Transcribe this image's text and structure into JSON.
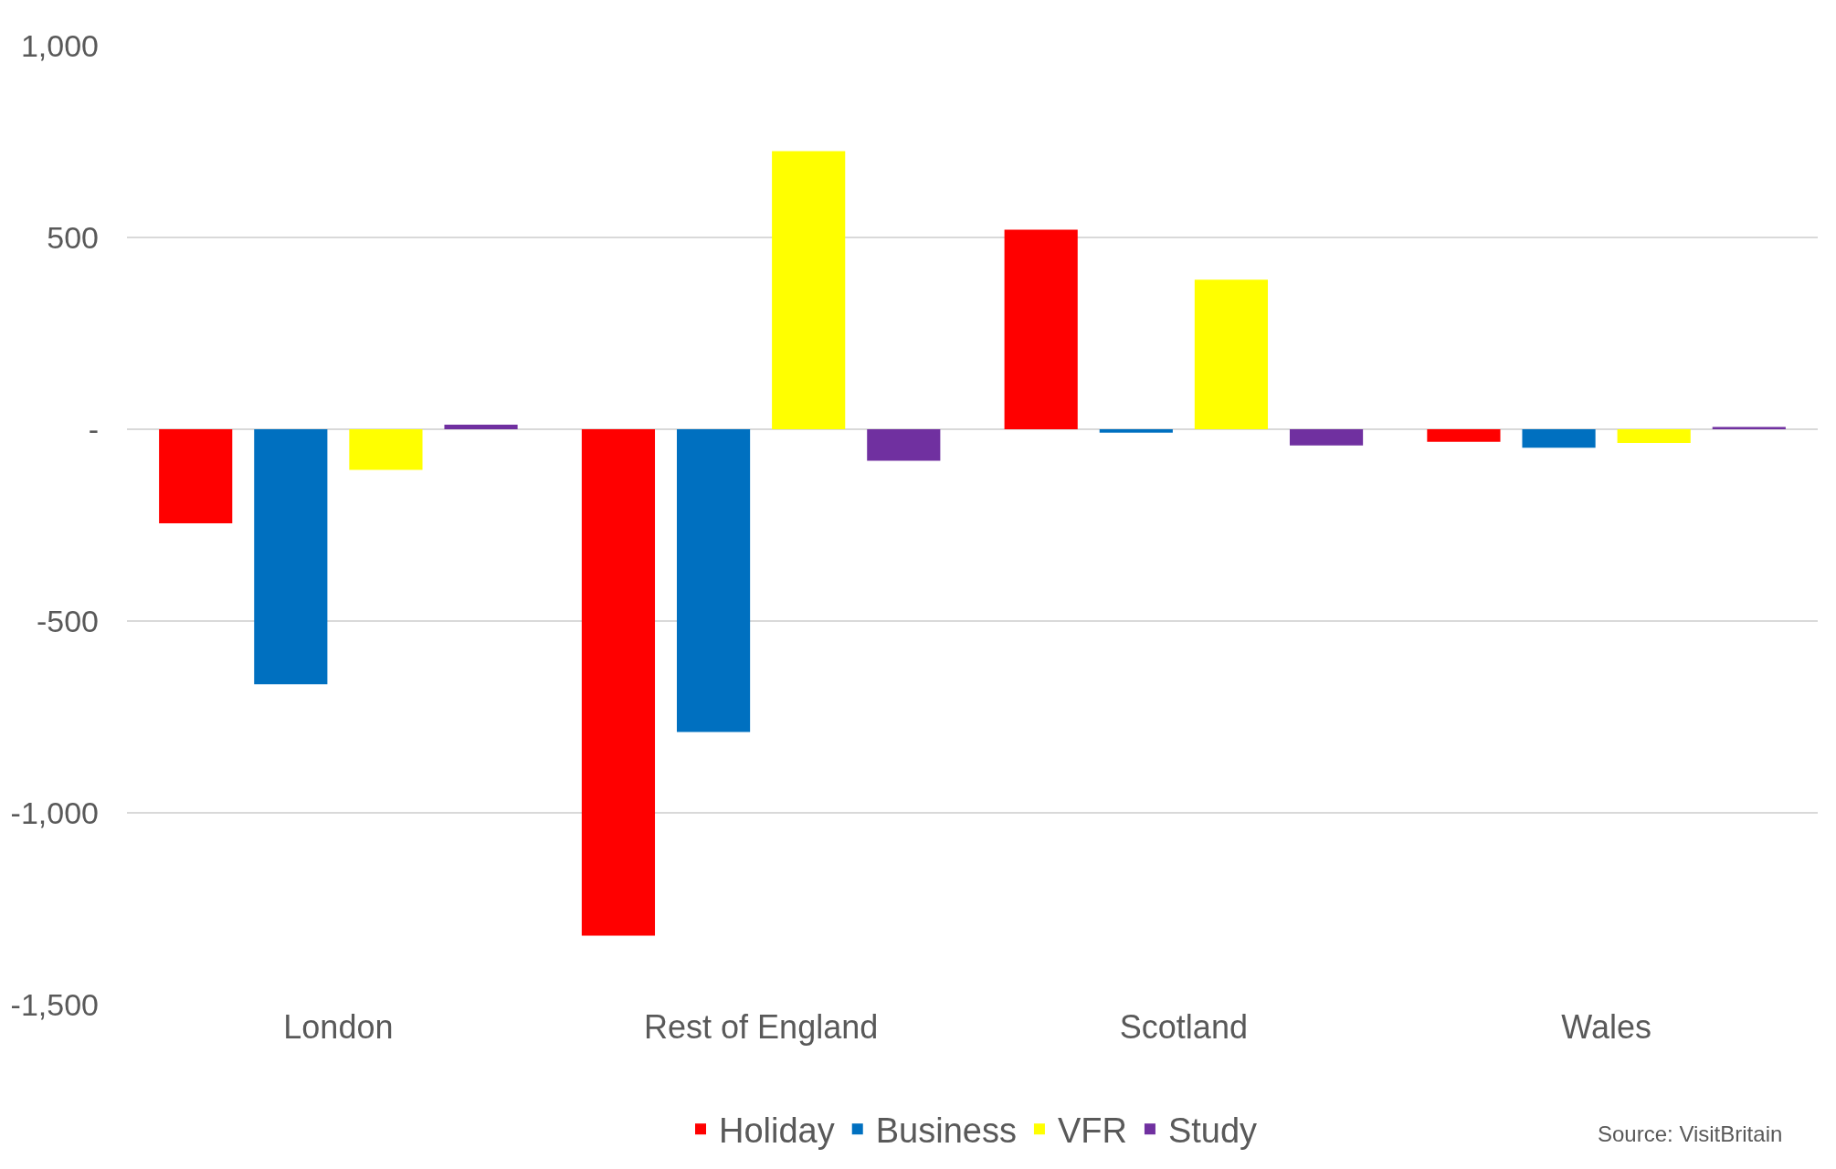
{
  "chart_data": {
    "type": "bar",
    "categories": [
      "London",
      "Rest of England",
      "Scotland",
      "Wales"
    ],
    "series": [
      {
        "name": "Holiday",
        "color": "#ff0000",
        "values": [
          -245,
          -1320,
          520,
          -33
        ]
      },
      {
        "name": "Business",
        "color": "#0070c0",
        "values": [
          -665,
          -789,
          -9,
          -48
        ]
      },
      {
        "name": "VFR",
        "color": "#ffff00",
        "values": [
          -106,
          725,
          390,
          -36
        ]
      },
      {
        "name": "Study",
        "color": "#7030a0",
        "values": [
          12,
          -82,
          -42,
          6
        ]
      }
    ],
    "ylim": [
      -1500,
      1000
    ],
    "yticks": [
      {
        "value": 1000,
        "label": "1,000"
      },
      500,
      {
        "value": 0,
        "label": "-"
      },
      -500,
      {
        "value": -1000,
        "label": "-1,000"
      },
      {
        "value": -1500,
        "label": "-1,500"
      }
    ],
    "grid": "y",
    "legend": "bottom",
    "annotations": [
      "Source: VisitBritain"
    ]
  }
}
